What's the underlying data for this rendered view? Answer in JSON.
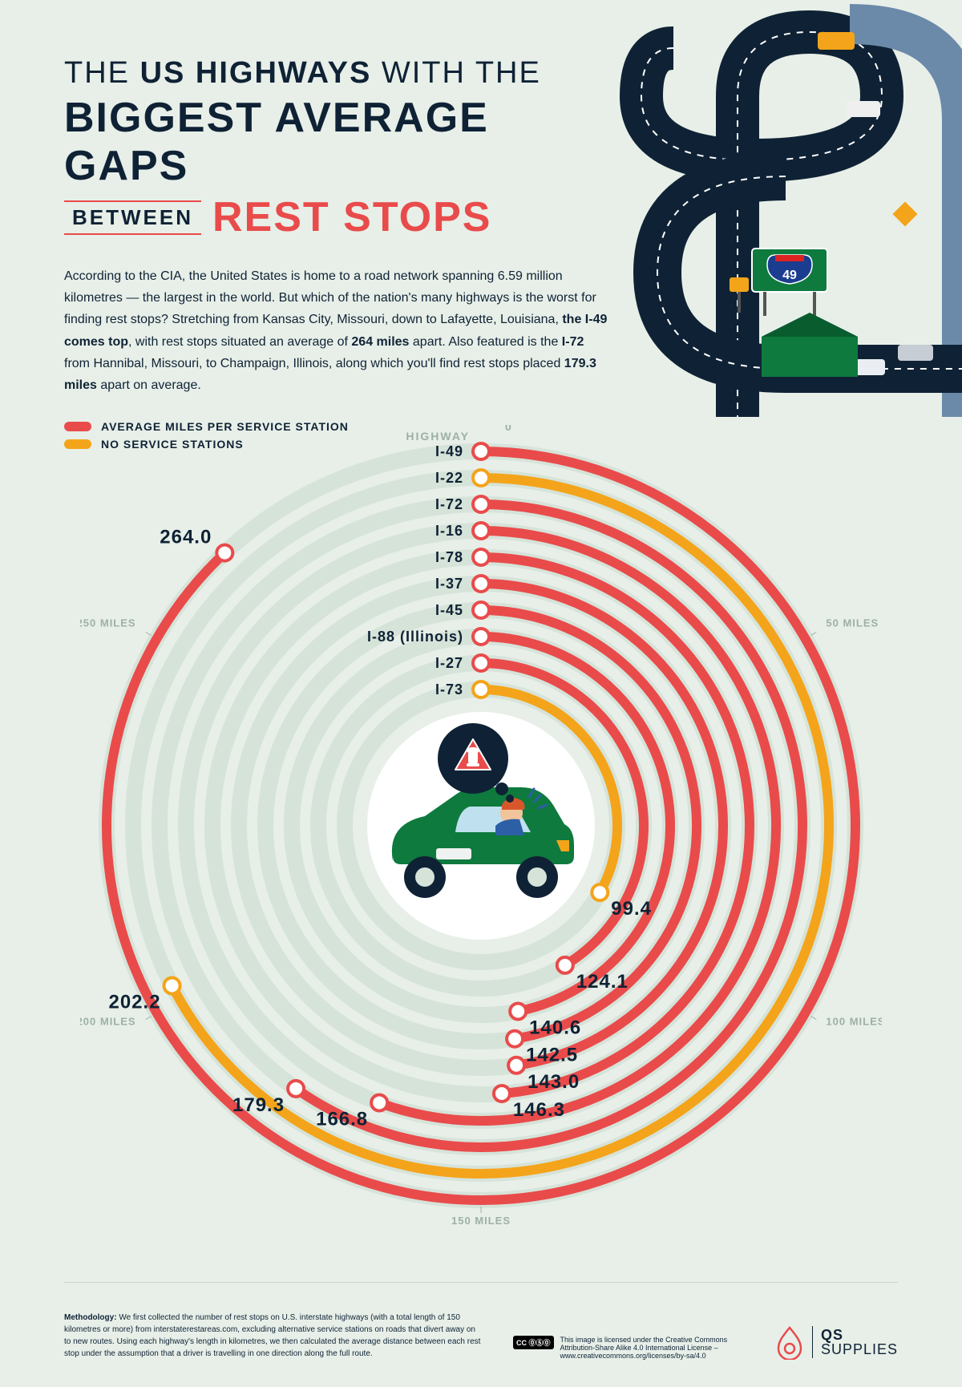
{
  "title": {
    "line1_pre": "THE ",
    "line1_b": "US HIGHWAYS",
    "line1_post": " WITH THE",
    "line2": "BIGGEST AVERAGE GAPS",
    "between": "BETWEEN",
    "rest_stops": "REST STOPS"
  },
  "intro_html": "According to the CIA, the United States is home to a road network spanning 6.59 million kilometres — the largest in the world. But which of the nation's many highways is the worst for finding rest stops? Stretching from Kansas City, Missouri, down to Lafayette, Louisiana, <b>the I-49 comes top</b>, with rest stops situated an average of <b>264 miles</b> apart. Also featured is the <b>I-72</b> from Hannibal, Missouri, to Champaign, Illinois, along which you'll find rest stops placed <b>179.3 miles</b> apart on average.",
  "legend": {
    "avg": {
      "label": "AVERAGE MILES PER SERVICE STATION",
      "color": "#e94b4b"
    },
    "none": {
      "label": "NO SERVICE STATIONS",
      "color": "#f4a41a"
    }
  },
  "chart": {
    "type": "radial-bar",
    "scale_max": 300,
    "axis_ticks": [
      {
        "value": 0,
        "label": "0"
      },
      {
        "value": 50,
        "label": "50 MILES"
      },
      {
        "value": 100,
        "label": "100 MILES"
      },
      {
        "value": 150,
        "label": "150 MILES"
      },
      {
        "value": 200,
        "label": "200 MILES"
      },
      {
        "value": 250,
        "label": "250 MILES"
      }
    ],
    "column_header": "HIGHWAY",
    "track_color": "#d6e3d9",
    "track_width": 20,
    "arc_width": 12,
    "endpoint_radius": 10,
    "inner_radius": 170,
    "ring_gap": 33,
    "center_bg": "#ffffff",
    "highways": [
      {
        "name": "I-49",
        "value": 264.0,
        "color": "#e94b4b"
      },
      {
        "name": "I-22",
        "value": 202.2,
        "color": "#f4a41a"
      },
      {
        "name": "I-72",
        "value": 179.3,
        "color": "#e94b4b"
      },
      {
        "name": "I-16",
        "value": 166.8,
        "color": "#e94b4b"
      },
      {
        "name": "I-78",
        "value": 146.3,
        "color": "#e94b4b"
      },
      {
        "name": "I-37",
        "value": 143.0,
        "color": "#e94b4b"
      },
      {
        "name": "I-45",
        "value": 142.5,
        "color": "#e94b4b"
      },
      {
        "name": "I-88 (Illinois)",
        "value": 140.6,
        "color": "#e94b4b"
      },
      {
        "name": "I-27",
        "value": 124.1,
        "color": "#e94b4b"
      },
      {
        "name": "I-73",
        "value": 99.4,
        "color": "#f4a41a"
      }
    ]
  },
  "sign_number": "49",
  "methodology": "<b>Methodology:</b> We first collected the number of rest stops on U.S. interstate highways (with a total length of 150 kilometres or more) from interstaterestareas.com, excluding alternative service stations on roads that divert away on to new routes. Using each highway's length in kilometres, we then calculated the average distance between each rest stop under the assumption that a driver is travelling in one direction along the full route.",
  "license": {
    "badge": "CC ⓪⑤⓪",
    "text": "This image is licensed under the Creative Commons Attribution-Share Alike 4.0 International License – www.creativecommons.org/licenses/by-sa/4.0"
  },
  "brand": {
    "top": "QS",
    "bottom": "SUPPLIES"
  },
  "colors": {
    "bg": "#e7efe8",
    "text": "#0f2235",
    "red": "#e94b4b",
    "orange": "#f4a41a",
    "muted": "#9db0a8"
  }
}
